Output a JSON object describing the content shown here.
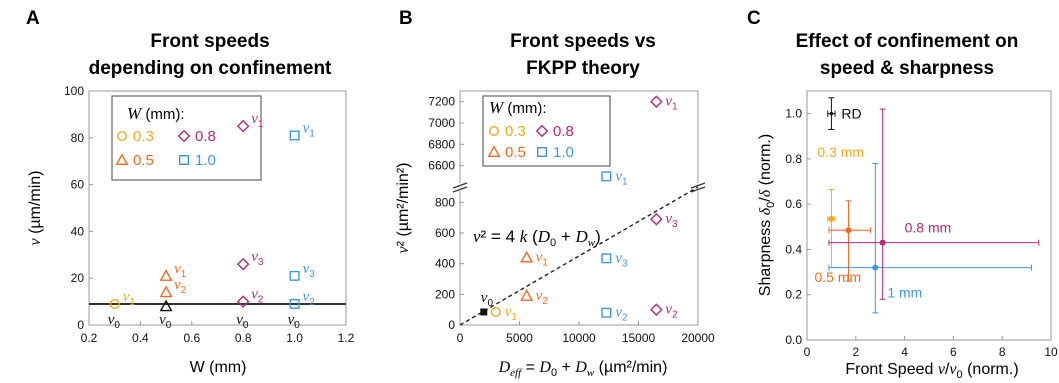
{
  "colors": {
    "w03": "#f2a81d",
    "w05": "#ef6a24",
    "w08": "#b5287a",
    "w10": "#3f97e0",
    "black": "#111111",
    "frame": "#9a9a9a"
  },
  "chart_data": [
    {
      "type": "scatter",
      "panel": "A",
      "title": [
        "Front speeds",
        "depending on confinement"
      ],
      "xlabel": "W (mm)",
      "ylabel": "v (µm/min)",
      "xlim": [
        0.2,
        1.2
      ],
      "ylim": [
        0,
        100
      ],
      "xticks": [
        0.2,
        0.4,
        0.6,
        0.8,
        1.0,
        1.2
      ],
      "yticks": [
        0,
        20,
        40,
        60,
        80,
        100
      ],
      "hline": 9,
      "legend": {
        "title": "W (mm):",
        "position": "top-left",
        "entries": [
          "0.3",
          "0.5",
          "0.8",
          "1.0"
        ]
      },
      "series": [
        {
          "name": "0.3",
          "marker": "circle",
          "color": "#f2a81d",
          "points": [
            {
              "x": 0.3,
              "y": 9,
              "label": "v1"
            }
          ]
        },
        {
          "name": "0.5",
          "marker": "triangle",
          "color": "#ef6a24",
          "points": [
            {
              "x": 0.5,
              "y": 21,
              "label": "v1"
            },
            {
              "x": 0.5,
              "y": 14,
              "label": "v2"
            }
          ]
        },
        {
          "name": "0.8",
          "marker": "diamond",
          "color": "#b5287a",
          "points": [
            {
              "x": 0.8,
              "y": 85,
              "label": "v1"
            },
            {
              "x": 0.8,
              "y": 26,
              "label": "v3"
            },
            {
              "x": 0.8,
              "y": 10,
              "label": "v2"
            }
          ]
        },
        {
          "name": "1.0",
          "marker": "square",
          "color": "#3f97e0",
          "points": [
            {
              "x": 1.0,
              "y": 81,
              "label": "v1"
            },
            {
              "x": 1.0,
              "y": 21,
              "label": "v3"
            },
            {
              "x": 1.0,
              "y": 9,
              "label": "v2"
            }
          ]
        },
        {
          "name": "v0",
          "marker": "triangle",
          "color": "#111111",
          "points": [
            {
              "x": 0.5,
              "y": 8,
              "label": ""
            }
          ]
        }
      ],
      "v0_labels_x": [
        0.3,
        0.5,
        0.8,
        1.0
      ]
    },
    {
      "type": "scatter",
      "panel": "B",
      "title": [
        "Front speeds vs",
        "FKPP theory"
      ],
      "xlabel": "D_eff = D_0 + D_w (µm²/min)",
      "ylabel": "v² (µm²/min²)",
      "xlim": [
        0,
        20000
      ],
      "ylim_lower": [
        0,
        900
      ],
      "ylim_upper": [
        6400,
        7300
      ],
      "xticks": [
        0,
        5000,
        10000,
        15000,
        20000
      ],
      "yticks_lower": [
        0,
        200,
        400,
        600,
        800
      ],
      "yticks_upper": [
        6600,
        6800,
        7000,
        7200
      ],
      "fit_label": "v² = 4 k (D_0 + D_w)",
      "fit_line": [
        [
          0,
          0
        ],
        [
          20000,
          900
        ]
      ],
      "legend": {
        "title": "W (mm):",
        "position": "top-left",
        "entries": [
          "0.3",
          "0.5",
          "0.8",
          "1.0"
        ]
      },
      "series": [
        {
          "name": "0.3",
          "marker": "circle",
          "color": "#f2a81d",
          "points": [
            {
              "x": 3000,
              "y": 85,
              "label": "v1"
            }
          ]
        },
        {
          "name": "0.5",
          "marker": "triangle",
          "color": "#ef6a24",
          "points": [
            {
              "x": 5600,
              "y": 440,
              "label": "v1"
            },
            {
              "x": 5600,
              "y": 190,
              "label": "v2"
            }
          ]
        },
        {
          "name": "0.8",
          "marker": "diamond",
          "color": "#b5287a",
          "points": [
            {
              "x": 16500,
              "y": 7200,
              "label": "v1"
            },
            {
              "x": 16500,
              "y": 690,
              "label": "v3"
            },
            {
              "x": 16500,
              "y": 100,
              "label": "v2"
            }
          ]
        },
        {
          "name": "1.0",
          "marker": "square",
          "color": "#3f97e0",
          "points": [
            {
              "x": 12300,
              "y": 6500,
              "label": "v1"
            },
            {
              "x": 12300,
              "y": 435,
              "label": "v3"
            },
            {
              "x": 12300,
              "y": 80,
              "label": "v2"
            }
          ]
        },
        {
          "name": "v0",
          "marker": "square",
          "color": "#111111",
          "points": [
            {
              "x": 2000,
              "y": 85,
              "label": "v0"
            }
          ]
        }
      ]
    },
    {
      "type": "scatter",
      "panel": "C",
      "title": [
        "Effect of confinement on",
        "speed & sharpness"
      ],
      "xlabel": "Front Speed v/v0 (norm.)",
      "ylabel": "Sharpness δ0/δ (norm.)",
      "xlim": [
        0,
        10
      ],
      "ylim": [
        0,
        1.1
      ],
      "xticks": [
        0,
        2,
        4,
        6,
        8,
        10
      ],
      "yticks": [
        0.0,
        0.2,
        0.4,
        0.6,
        0.8,
        1.0
      ],
      "points": [
        {
          "name": "RD",
          "x": 1.0,
          "y": 1.0,
          "xerr": [
            0.85,
            1.15
          ],
          "yerr": [
            0.93,
            1.07
          ],
          "color": "#111111",
          "label": "RD"
        },
        {
          "name": "0.3 mm",
          "x": 1.0,
          "y": 0.535,
          "xerr": [
            0.85,
            1.15
          ],
          "yerr": [
            0.32,
            0.665
          ],
          "color": "#f2a81d",
          "label": "0.3 mm"
        },
        {
          "name": "0.5 mm",
          "x": 1.7,
          "y": 0.485,
          "xerr": [
            0.9,
            2.6
          ],
          "yerr": [
            0.26,
            0.615
          ],
          "color": "#ef6a24",
          "label": "0.5 mm"
        },
        {
          "name": "1 mm",
          "x": 2.8,
          "y": 0.32,
          "xerr": [
            0.9,
            9.2
          ],
          "yerr": [
            0.12,
            0.78
          ],
          "color": "#3f97e0",
          "label": "1 mm"
        },
        {
          "name": "0.8 mm",
          "x": 3.1,
          "y": 0.43,
          "xerr": [
            0.9,
            9.5
          ],
          "yerr": [
            0.18,
            1.02
          ],
          "color": "#b5287a",
          "label": "0.8 mm"
        }
      ]
    }
  ]
}
